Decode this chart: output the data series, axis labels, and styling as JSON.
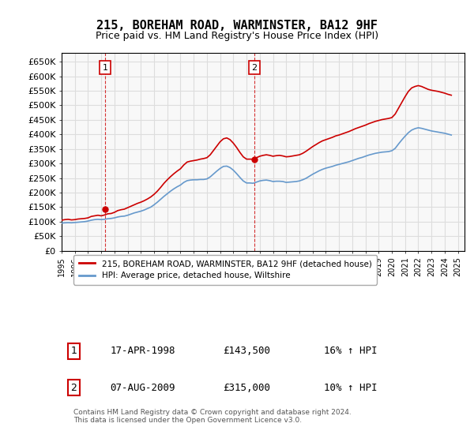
{
  "title": "215, BOREHAM ROAD, WARMINSTER, BA12 9HF",
  "subtitle": "Price paid vs. HM Land Registry's House Price Index (HPI)",
  "ylabel_ticks": [
    "£0",
    "£50K",
    "£100K",
    "£150K",
    "£200K",
    "£250K",
    "£300K",
    "£350K",
    "£400K",
    "£450K",
    "£500K",
    "£550K",
    "£600K",
    "£650K"
  ],
  "ytick_values": [
    0,
    50000,
    100000,
    150000,
    200000,
    250000,
    300000,
    350000,
    400000,
    450000,
    500000,
    550000,
    600000,
    650000
  ],
  "ylim": [
    0,
    680000
  ],
  "xlim_start": 1995.0,
  "xlim_end": 2025.5,
  "grid_color": "#dddddd",
  "bg_color": "#ffffff",
  "plot_bg_color": "#f8f8f8",
  "red_line_color": "#cc0000",
  "blue_line_color": "#6699cc",
  "sale1_x": 1998.29,
  "sale1_y": 143500,
  "sale1_label": "1",
  "sale2_x": 2009.59,
  "sale2_y": 315000,
  "sale2_label": "2",
  "legend_red_label": "215, BOREHAM ROAD, WARMINSTER, BA12 9HF (detached house)",
  "legend_blue_label": "HPI: Average price, detached house, Wiltshire",
  "annotation1_date": "17-APR-1998",
  "annotation1_price": "£143,500",
  "annotation1_hpi": "16% ↑ HPI",
  "annotation2_date": "07-AUG-2009",
  "annotation2_price": "£315,000",
  "annotation2_hpi": "10% ↑ HPI",
  "footnote": "Contains HM Land Registry data © Crown copyright and database right 2024.\nThis data is licensed under the Open Government Licence v3.0.",
  "red_x": [
    1995.0,
    1995.25,
    1995.5,
    1995.75,
    1996.0,
    1996.25,
    1996.5,
    1996.75,
    1997.0,
    1997.25,
    1997.5,
    1997.75,
    1998.0,
    1998.25,
    1998.5,
    1998.75,
    1999.0,
    1999.25,
    1999.5,
    1999.75,
    2000.0,
    2000.25,
    2000.5,
    2000.75,
    2001.0,
    2001.25,
    2001.5,
    2001.75,
    2002.0,
    2002.25,
    2002.5,
    2002.75,
    2003.0,
    2003.25,
    2003.5,
    2003.75,
    2004.0,
    2004.25,
    2004.5,
    2004.75,
    2005.0,
    2005.25,
    2005.5,
    2005.75,
    2006.0,
    2006.25,
    2006.5,
    2006.75,
    2007.0,
    2007.25,
    2007.5,
    2007.75,
    2008.0,
    2008.25,
    2008.5,
    2008.75,
    2009.0,
    2009.25,
    2009.5,
    2009.75,
    2010.0,
    2010.25,
    2010.5,
    2010.75,
    2011.0,
    2011.25,
    2011.5,
    2011.75,
    2012.0,
    2012.25,
    2012.5,
    2012.75,
    2013.0,
    2013.25,
    2013.5,
    2013.75,
    2014.0,
    2014.25,
    2014.5,
    2014.75,
    2015.0,
    2015.25,
    2015.5,
    2015.75,
    2016.0,
    2016.25,
    2016.5,
    2016.75,
    2017.0,
    2017.25,
    2017.5,
    2017.75,
    2018.0,
    2018.25,
    2018.5,
    2018.75,
    2019.0,
    2019.25,
    2019.5,
    2019.75,
    2020.0,
    2020.25,
    2020.5,
    2020.75,
    2021.0,
    2021.25,
    2021.5,
    2021.75,
    2022.0,
    2022.25,
    2022.5,
    2022.75,
    2023.0,
    2023.25,
    2023.5,
    2023.75,
    2024.0,
    2024.25,
    2024.5
  ],
  "red_y": [
    105000,
    107000,
    108000,
    106000,
    107000,
    109000,
    110000,
    111000,
    113000,
    118000,
    120000,
    122000,
    120000,
    123000,
    127000,
    128000,
    132000,
    138000,
    141000,
    143000,
    148000,
    153000,
    158000,
    163000,
    167000,
    172000,
    178000,
    185000,
    194000,
    205000,
    218000,
    232000,
    244000,
    255000,
    265000,
    274000,
    282000,
    295000,
    305000,
    308000,
    310000,
    312000,
    315000,
    317000,
    320000,
    330000,
    345000,
    360000,
    375000,
    385000,
    388000,
    382000,
    370000,
    355000,
    338000,
    323000,
    315000,
    315000,
    315000,
    320000,
    325000,
    328000,
    330000,
    328000,
    325000,
    327000,
    328000,
    326000,
    323000,
    324000,
    326000,
    328000,
    330000,
    335000,
    342000,
    350000,
    358000,
    365000,
    372000,
    378000,
    382000,
    386000,
    390000,
    395000,
    398000,
    402000,
    406000,
    410000,
    415000,
    420000,
    424000,
    428000,
    432000,
    437000,
    441000,
    445000,
    448000,
    451000,
    453000,
    455000,
    458000,
    470000,
    490000,
    510000,
    530000,
    548000,
    560000,
    565000,
    568000,
    565000,
    560000,
    555000,
    552000,
    550000,
    548000,
    545000,
    542000,
    538000,
    535000
  ],
  "blue_x": [
    1995.0,
    1995.25,
    1995.5,
    1995.75,
    1996.0,
    1996.25,
    1996.5,
    1996.75,
    1997.0,
    1997.25,
    1997.5,
    1997.75,
    1998.0,
    1998.25,
    1998.5,
    1998.75,
    1999.0,
    1999.25,
    1999.5,
    1999.75,
    2000.0,
    2000.25,
    2000.5,
    2000.75,
    2001.0,
    2001.25,
    2001.5,
    2001.75,
    2002.0,
    2002.25,
    2002.5,
    2002.75,
    2003.0,
    2003.25,
    2003.5,
    2003.75,
    2004.0,
    2004.25,
    2004.5,
    2004.75,
    2005.0,
    2005.25,
    2005.5,
    2005.75,
    2006.0,
    2006.25,
    2006.5,
    2006.75,
    2007.0,
    2007.25,
    2007.5,
    2007.75,
    2008.0,
    2008.25,
    2008.5,
    2008.75,
    2009.0,
    2009.25,
    2009.5,
    2009.75,
    2010.0,
    2010.25,
    2010.5,
    2010.75,
    2011.0,
    2011.25,
    2011.5,
    2011.75,
    2012.0,
    2012.25,
    2012.5,
    2012.75,
    2013.0,
    2013.25,
    2013.5,
    2013.75,
    2014.0,
    2014.25,
    2014.5,
    2014.75,
    2015.0,
    2015.25,
    2015.5,
    2015.75,
    2016.0,
    2016.25,
    2016.5,
    2016.75,
    2017.0,
    2017.25,
    2017.5,
    2017.75,
    2018.0,
    2018.25,
    2018.5,
    2018.75,
    2019.0,
    2019.25,
    2019.5,
    2019.75,
    2020.0,
    2020.25,
    2020.5,
    2020.75,
    2021.0,
    2021.25,
    2021.5,
    2021.75,
    2022.0,
    2022.25,
    2022.5,
    2022.75,
    2023.0,
    2023.25,
    2023.5,
    2023.75,
    2024.0,
    2024.25,
    2024.5
  ],
  "blue_y": [
    95000,
    96000,
    96500,
    96000,
    97000,
    98000,
    99000,
    100000,
    102000,
    105000,
    107000,
    108000,
    107000,
    108000,
    110000,
    111000,
    113000,
    116000,
    118000,
    119000,
    122000,
    126000,
    130000,
    133000,
    136000,
    140000,
    145000,
    150000,
    158000,
    167000,
    177000,
    187000,
    196000,
    205000,
    213000,
    220000,
    226000,
    235000,
    241000,
    243000,
    244000,
    244000,
    245000,
    245000,
    247000,
    254000,
    264000,
    274000,
    283000,
    290000,
    291000,
    286000,
    277000,
    265000,
    252000,
    240000,
    233000,
    233000,
    232000,
    236000,
    240000,
    242000,
    243000,
    241000,
    238000,
    239000,
    239000,
    238000,
    235000,
    236000,
    237000,
    238000,
    240000,
    244000,
    249000,
    256000,
    263000,
    269000,
    275000,
    280000,
    284000,
    287000,
    290000,
    294000,
    297000,
    300000,
    303000,
    306000,
    310000,
    314000,
    318000,
    321000,
    325000,
    329000,
    332000,
    335000,
    337000,
    339000,
    340000,
    341000,
    344000,
    352000,
    367000,
    381000,
    394000,
    406000,
    415000,
    420000,
    423000,
    421000,
    418000,
    415000,
    412000,
    410000,
    408000,
    406000,
    404000,
    401000,
    398000
  ]
}
